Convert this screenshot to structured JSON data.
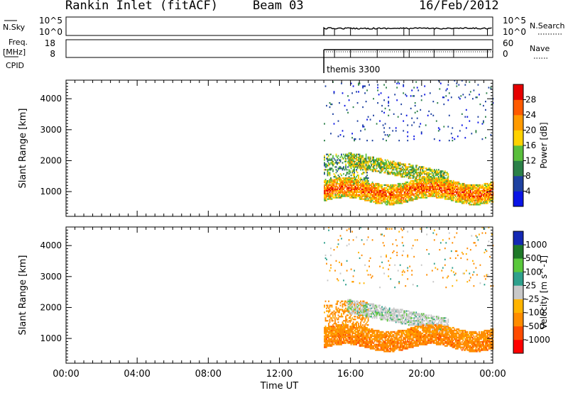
{
  "header": {
    "station": "Rankin Inlet (fitACF)",
    "beam": "Beam 03",
    "date": "16/Feb/2012"
  },
  "top_panels": {
    "nsky_label": "N.Sky",
    "nsky_ticks": [
      "10^5",
      "10^0"
    ],
    "nsearch_label": "N.Search",
    "nsearch_ticks": [
      "10^5",
      "10^0"
    ],
    "freq_label": "Freq.",
    "freq_unit": "[MHz]",
    "freq_ticks": [
      "18",
      "8"
    ],
    "nave_label": "Nave",
    "nave_ticks": [
      "60",
      "0"
    ],
    "cpid_label": "CPID",
    "cpid_text": "themis 3300"
  },
  "colors": {
    "power": [
      "#0a14e6",
      "#1e41a0",
      "#2b8048",
      "#5abf3c",
      "#ffd200",
      "#ff9a00",
      "#ff5a00",
      "#e60000"
    ],
    "velocity": [
      "#ff0000",
      "#ff4b00",
      "#ff8c00",
      "#ffb400",
      "#c8c8c8",
      "#2fa08c",
      "#5ac83c",
      "#1e7828",
      "#1428b4"
    ]
  },
  "chart_data": [
    {
      "type": "heatmap",
      "title": "Power",
      "ylabel": "Slant Range [km]",
      "xlabel": "",
      "colorbar_label": "Power [dB]",
      "colorbar_ticks": [
        "4",
        "8",
        "12",
        "16",
        "20",
        "24",
        "28"
      ],
      "x_ticks": [
        "00:00",
        "04:00",
        "08:00",
        "12:00",
        "16:00",
        "20:00",
        "00:00"
      ],
      "y_ticks": [
        "1000",
        "2000",
        "3000",
        "4000"
      ],
      "xlim_hours": [
        0,
        24
      ],
      "ylim_km": [
        200,
        4600
      ],
      "data_start_hour": 14.5,
      "data_end_hour": 24,
      "features": [
        {
          "name": "main echo band",
          "hours": [
            14.5,
            24
          ],
          "range_km": [
            700,
            1400
          ],
          "power_db": 28
        },
        {
          "name": "upper echo band",
          "hours": [
            16.0,
            21.0
          ],
          "range_km": [
            1500,
            2200
          ],
          "power_db": 16
        },
        {
          "name": "scattered high-range echoes",
          "hours": [
            16.0,
            22.0
          ],
          "range_km": [
            2800,
            4500
          ],
          "power_db": 6
        }
      ]
    },
    {
      "type": "heatmap",
      "title": "Velocity",
      "ylabel": "Slant Range [km]",
      "xlabel": "Time UT",
      "colorbar_label": "Velocity [m s^-1]",
      "colorbar_ticks": [
        "-1000",
        "-500",
        "-100",
        "-25",
        "25",
        "100",
        "500",
        "1000"
      ],
      "x_ticks": [
        "00:00",
        "04:00",
        "08:00",
        "12:00",
        "16:00",
        "20:00",
        "00:00"
      ],
      "y_ticks": [
        "1000",
        "2000",
        "3000",
        "4000"
      ],
      "xlim_hours": [
        0,
        24
      ],
      "ylim_km": [
        200,
        4600
      ],
      "data_start_hour": 14.5,
      "data_end_hour": 24,
      "features": [
        {
          "name": "main echo band",
          "hours": [
            14.5,
            24
          ],
          "range_km": [
            700,
            1400
          ],
          "velocity_ms": -300
        },
        {
          "name": "ground scatter band",
          "hours": [
            16.0,
            21.0
          ],
          "range_km": [
            1500,
            2200
          ],
          "velocity_ms": 0
        },
        {
          "name": "scattered high-range echoes",
          "hours": [
            16.0,
            22.0
          ],
          "range_km": [
            2800,
            4500
          ],
          "velocity_ms": -100
        }
      ]
    }
  ]
}
